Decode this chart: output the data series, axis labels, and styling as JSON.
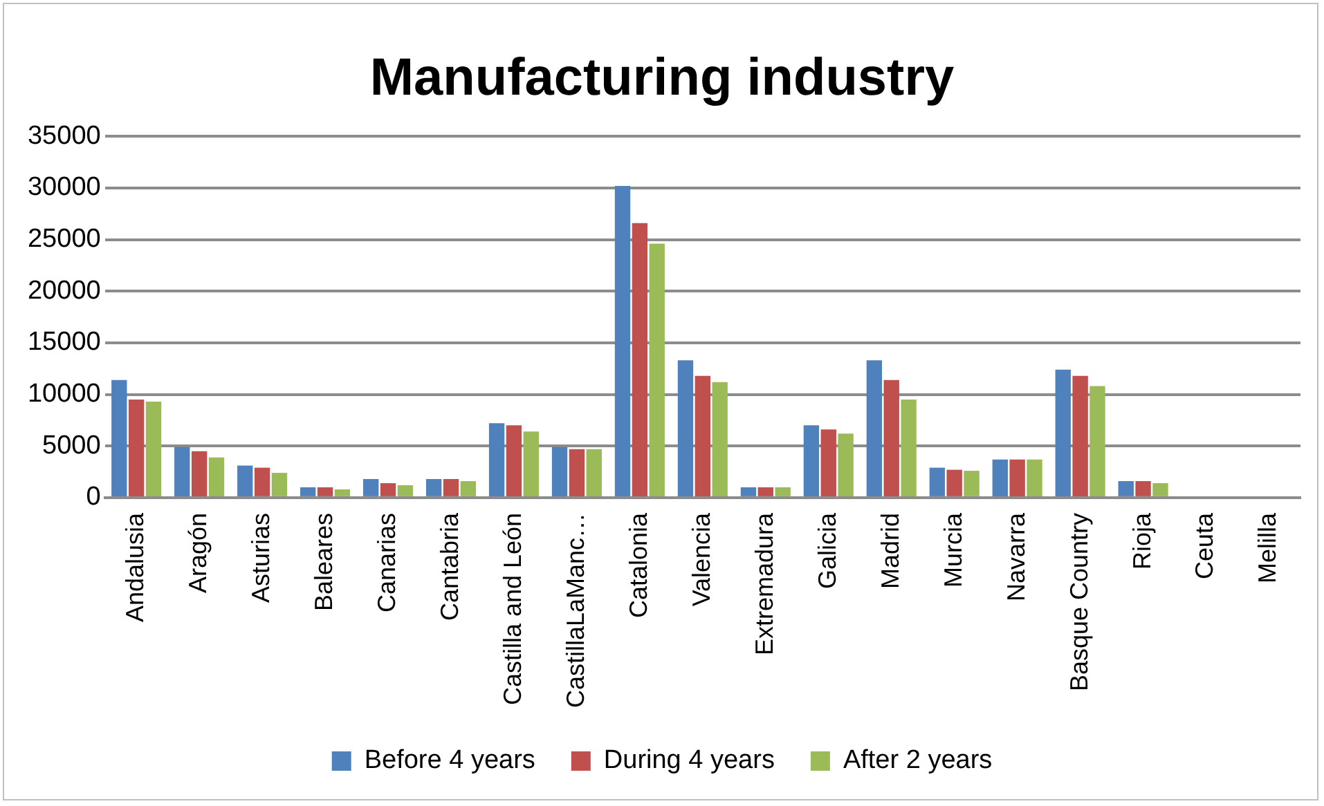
{
  "chart_data": {
    "type": "bar",
    "title": "Manufacturing industry",
    "categories": [
      "Andalusia",
      "Aragón",
      "Asturias",
      "Baleares",
      "Canarias",
      "Cantabria",
      "Castilla and León",
      "CastillaLaManc…",
      "Catalonia",
      "Valencia",
      "Extremadura",
      "Galicia",
      "Madrid",
      "Murcia",
      "Navarra",
      "Basque Country",
      "Rioja",
      "Ceuta",
      "Melilla"
    ],
    "series": [
      {
        "name": "Before 4 years",
        "color": "#4f81bd",
        "values": [
          11400,
          4900,
          3100,
          1000,
          1800,
          1800,
          7200,
          4900,
          30200,
          13300,
          1000,
          7000,
          13300,
          2900,
          3700,
          12400,
          1600,
          0,
          0
        ]
      },
      {
        "name": "During 4 years",
        "color": "#c0504d",
        "values": [
          9500,
          4500,
          2900,
          1000,
          1400,
          1800,
          7000,
          4700,
          26600,
          11800,
          1000,
          6600,
          11400,
          2700,
          3700,
          11800,
          1600,
          0,
          0
        ]
      },
      {
        "name": "After 2 years",
        "color": "#9bbb59",
        "values": [
          9300,
          3900,
          2400,
          800,
          1200,
          1600,
          6400,
          4700,
          24600,
          11200,
          1000,
          6200,
          9500,
          2600,
          3700,
          10800,
          1400,
          0,
          0
        ]
      }
    ],
    "ylim": [
      0,
      35000
    ],
    "yticks": [
      0,
      5000,
      10000,
      15000,
      20000,
      25000,
      30000,
      35000
    ],
    "grid": "y",
    "legend": "bottom"
  }
}
